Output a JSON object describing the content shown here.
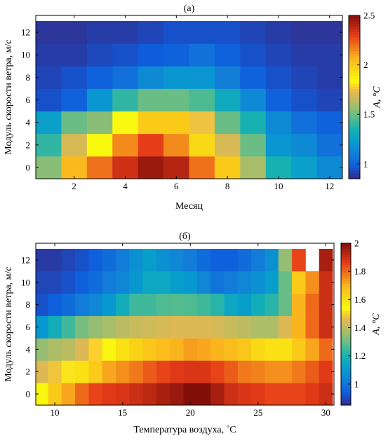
{
  "chart_data": [
    {
      "type": "heatmap",
      "title": "(а)",
      "xlabel": "Месяц",
      "ylabel": "Модуль скорости ветра, м/с",
      "colorbar_label": "A, °C",
      "colorbar_range": [
        0.85,
        2.5
      ],
      "colorbar_ticks": [
        "1",
        "1.5",
        "2",
        "2.5"
      ],
      "colorbar_tick_values": [
        1,
        1.5,
        2,
        2.5
      ],
      "xlim": [
        0.5,
        12.5
      ],
      "ylim": [
        -1,
        13.5
      ],
      "x_ticks": [
        "2",
        "4",
        "6",
        "8",
        "10",
        "12"
      ],
      "x_tick_values": [
        2,
        4,
        6,
        8,
        10,
        12
      ],
      "y_ticks": [
        "0",
        "2",
        "4",
        "6",
        "8",
        "10",
        "12"
      ],
      "y_tick_values": [
        0,
        2,
        4,
        6,
        8,
        10,
        12
      ],
      "x": [
        1,
        2,
        3,
        4,
        5,
        6,
        7,
        8,
        9,
        10,
        11,
        12
      ],
      "y": [
        0,
        2,
        4,
        6,
        8,
        10,
        12
      ],
      "cell_height": 2,
      "values": [
        [
          1.55,
          2.05,
          2.2,
          2.35,
          2.45,
          2.4,
          2.2,
          2.0,
          1.6,
          1.35,
          1.25,
          1.15
        ],
        [
          1.4,
          1.7,
          1.85,
          2.15,
          2.3,
          2.15,
          1.95,
          1.7,
          1.5,
          1.2,
          1.15,
          1.05
        ],
        [
          1.25,
          1.5,
          1.55,
          1.85,
          2.0,
          2.0,
          1.75,
          1.5,
          1.35,
          1.15,
          1.05,
          1.0
        ],
        [
          0.95,
          1.0,
          1.2,
          1.4,
          1.5,
          1.5,
          1.45,
          1.3,
          1.15,
          1.0,
          0.95,
          0.92
        ],
        [
          0.92,
          0.95,
          1.0,
          1.05,
          1.15,
          1.2,
          1.2,
          1.1,
          1.0,
          0.95,
          0.92,
          0.9
        ],
        [
          0.9,
          0.9,
          0.93,
          0.95,
          0.98,
          1.0,
          1.05,
          1.0,
          0.95,
          0.92,
          0.9,
          0.9
        ],
        [
          0.88,
          0.88,
          0.9,
          0.9,
          0.92,
          0.95,
          0.95,
          0.95,
          0.92,
          0.9,
          0.88,
          0.88
        ]
      ]
    },
    {
      "type": "heatmap",
      "title": "(б)",
      "xlabel": "Температура воздуха, ˚C",
      "ylabel": "Модуль скорости ветра, м/с",
      "colorbar_label": "A, °C",
      "colorbar_range": [
        0.85,
        2.0
      ],
      "colorbar_ticks": [
        "1",
        "1.2",
        "1.4",
        "1.6",
        "1.8",
        "2"
      ],
      "colorbar_tick_values": [
        1,
        1.2,
        1.4,
        1.6,
        1.8,
        2
      ],
      "xlim": [
        8.6,
        30.6
      ],
      "ylim": [
        -1,
        13.5
      ],
      "x_ticks": [
        "10",
        "15",
        "20",
        "25",
        "30"
      ],
      "x_tick_values": [
        10,
        15,
        20,
        25,
        30
      ],
      "y_ticks": [
        "0",
        "2",
        "4",
        "6",
        "8",
        "10",
        "12"
      ],
      "y_tick_values": [
        0,
        2,
        4,
        6,
        8,
        10,
        12
      ],
      "x": [
        9,
        10,
        11,
        12,
        13,
        14,
        15,
        16,
        17,
        18,
        19,
        20,
        21,
        22,
        23,
        24,
        25,
        26,
        27,
        28,
        29,
        30
      ],
      "y": [
        0,
        2,
        4,
        6,
        8,
        10,
        12
      ],
      "cell_height": 2,
      "missing_value_color": "#ffffff",
      "values": [
        [
          1.55,
          1.65,
          1.72,
          1.8,
          1.85,
          1.87,
          1.88,
          1.9,
          1.92,
          1.95,
          1.97,
          2.0,
          2.0,
          1.95,
          1.9,
          1.88,
          1.87,
          1.85,
          1.85,
          1.85,
          1.87,
          1.9
        ],
        [
          1.45,
          1.48,
          1.52,
          1.6,
          1.65,
          1.72,
          1.75,
          1.78,
          1.82,
          1.85,
          1.87,
          1.88,
          1.88,
          1.85,
          1.82,
          1.78,
          1.77,
          1.75,
          1.75,
          1.78,
          1.82,
          1.87
        ],
        [
          1.35,
          1.38,
          1.4,
          1.45,
          1.5,
          1.55,
          1.6,
          1.63,
          1.66,
          1.68,
          1.7,
          1.73,
          1.72,
          1.7,
          1.68,
          1.66,
          1.62,
          1.6,
          1.6,
          1.65,
          1.72,
          1.8
        ],
        [
          1.1,
          1.18,
          1.25,
          1.32,
          1.35,
          1.37,
          1.4,
          1.42,
          1.43,
          1.44,
          1.45,
          1.45,
          1.45,
          1.44,
          1.42,
          1.4,
          1.38,
          1.38,
          1.45,
          1.7,
          1.8,
          1.9
        ],
        [
          0.92,
          0.95,
          0.98,
          1.02,
          1.05,
          1.1,
          1.18,
          1.25,
          1.25,
          1.27,
          1.28,
          1.27,
          1.25,
          1.22,
          1.15,
          1.12,
          1.18,
          1.22,
          1.3,
          1.7,
          1.8,
          1.9
        ],
        [
          0.9,
          0.9,
          0.92,
          0.95,
          0.98,
          1.02,
          1.05,
          1.1,
          1.15,
          1.15,
          1.12,
          1.1,
          1.05,
          1.0,
          1.02,
          1.05,
          1.08,
          1.12,
          1.3,
          1.65,
          1.75,
          1.9
        ],
        [
          0.88,
          0.88,
          0.9,
          0.92,
          0.95,
          0.98,
          1.02,
          1.08,
          1.12,
          1.08,
          1.05,
          1.02,
          0.98,
          0.95,
          0.95,
          0.98,
          1.02,
          1.08,
          1.35,
          1.85,
          null,
          1.95
        ]
      ]
    }
  ]
}
